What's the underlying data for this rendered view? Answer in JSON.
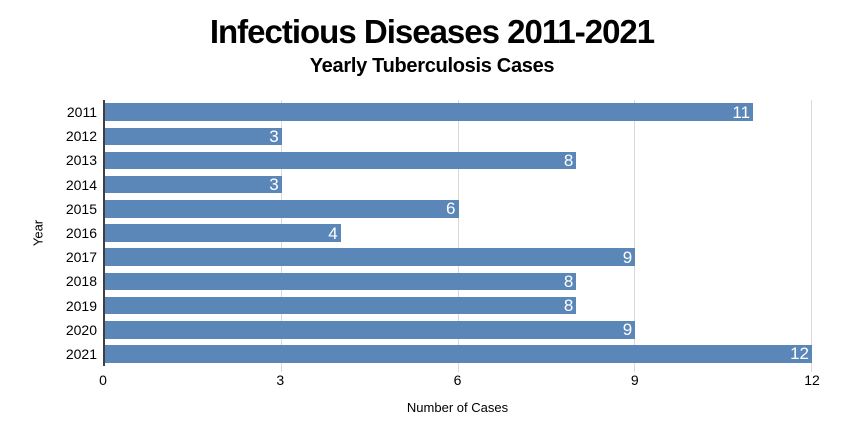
{
  "chart_data": {
    "type": "bar",
    "orientation": "horizontal",
    "title": "Infectious Diseases 2011-2021",
    "subtitle": "Yearly Tuberculosis Cases",
    "categories": [
      "2011",
      "2012",
      "2013",
      "2014",
      "2015",
      "2016",
      "2017",
      "2018",
      "2019",
      "2020",
      "2021"
    ],
    "values": [
      11,
      3,
      8,
      3,
      6,
      4,
      9,
      8,
      8,
      9,
      12
    ],
    "xlabel": "Number of Cases",
    "ylabel": "Year",
    "xlim": [
      0,
      12
    ],
    "xticks": [
      0,
      3,
      6,
      9,
      12
    ],
    "grid": "vertical-only",
    "legend": "none",
    "value_labels": "inside-end",
    "colors": {
      "bar": "#5b87b8",
      "value_label": "#ffffff",
      "gridline": "#d9d9d9",
      "axis_line": "#3f3f3f",
      "text": "#000000",
      "background": "#ffffff"
    }
  }
}
